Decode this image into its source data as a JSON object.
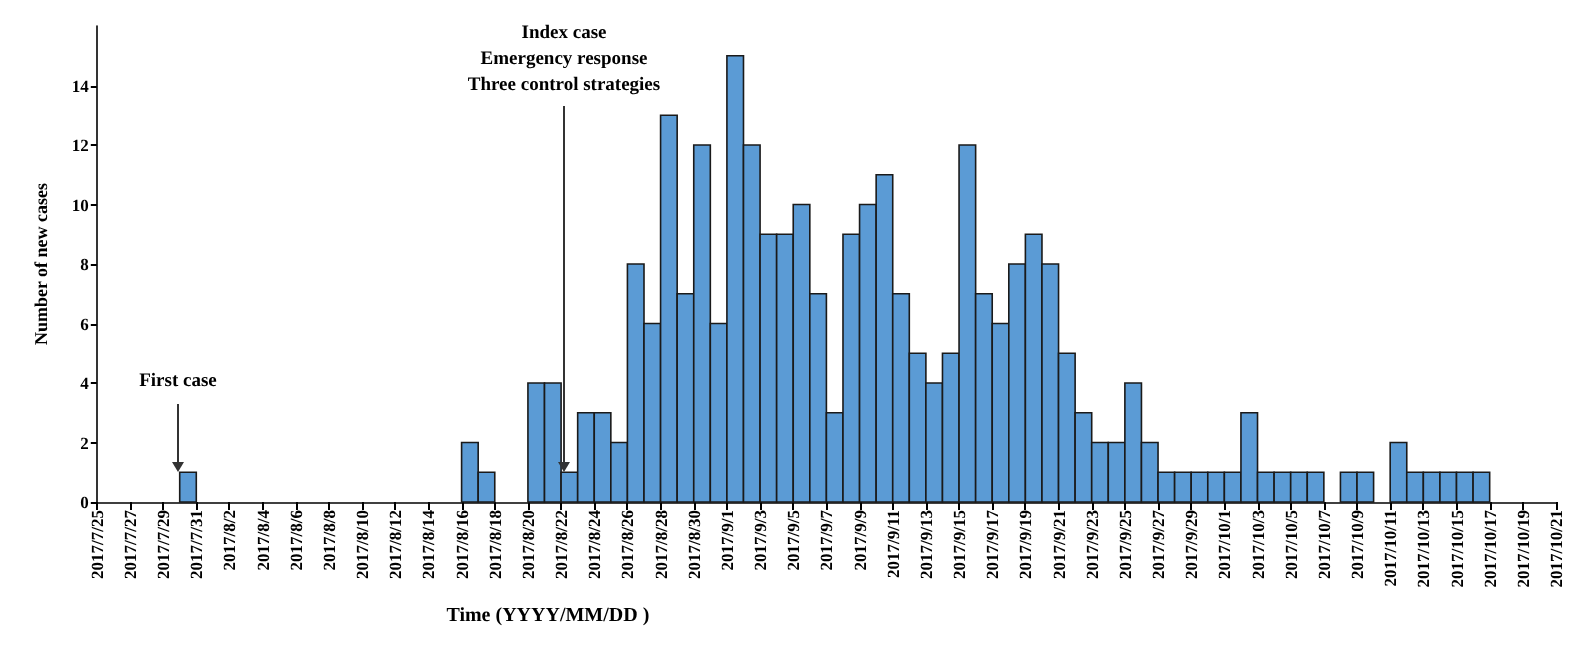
{
  "chart_data": {
    "type": "bar",
    "xlabel": "Time (YYYY/MM/DD )",
    "ylabel": "Number of new cases",
    "color": "#5b9bd5",
    "x": [
      "2017-07-25T12:00",
      "2017-07-26T12:00",
      "2017-07-27T12:00",
      "2017-07-28T12:00",
      "2017-07-29T12:00",
      "2017-07-30T12:00",
      "2017-07-31T12:00",
      "2017-08-01T12:00",
      "2017-08-02T12:00",
      "2017-08-03T12:00",
      "2017-08-04T12:00",
      "2017-08-05T12:00",
      "2017-08-06T12:00",
      "2017-08-07T12:00",
      "2017-08-08T12:00",
      "2017-08-09T12:00",
      "2017-08-10T12:00",
      "2017-08-11T12:00",
      "2017-08-12T12:00",
      "2017-08-13T12:00",
      "2017-08-14T12:00",
      "2017-08-15T12:00",
      "2017-08-16T12:00",
      "2017-08-17T12:00",
      "2017-08-18T12:00",
      "2017-08-19T12:00",
      "2017-08-20T12:00",
      "2017-08-21T12:00",
      "2017-08-22T12:00",
      "2017-08-23T12:00",
      "2017-08-24T12:00",
      "2017-08-25T12:00",
      "2017-08-26T12:00",
      "2017-08-27T12:00",
      "2017-08-28T12:00",
      "2017-08-29T12:00",
      "2017-08-30T12:00",
      "2017-08-31T12:00",
      "2017-09-01T12:00",
      "2017-09-02T12:00",
      "2017-09-03T12:00",
      "2017-09-04T12:00",
      "2017-09-05T12:00",
      "2017-09-06T12:00",
      "2017-09-07T12:00",
      "2017-09-08T12:00",
      "2017-09-09T12:00",
      "2017-09-10T12:00",
      "2017-09-11T12:00",
      "2017-09-12T12:00",
      "2017-09-13T12:00",
      "2017-09-14T12:00",
      "2017-09-15T12:00",
      "2017-09-16T12:00",
      "2017-09-17T12:00",
      "2017-09-18T12:00",
      "2017-09-19T12:00",
      "2017-09-20T12:00",
      "2017-09-21T12:00",
      "2017-09-22T12:00",
      "2017-09-23T12:00",
      "2017-09-24T12:00",
      "2017-09-25T12:00",
      "2017-09-26T12:00",
      "2017-09-27T12:00",
      "2017-09-28T12:00",
      "2017-09-29T12:00",
      "2017-09-30T12:00",
      "2017-10-01T12:00",
      "2017-10-02T12:00",
      "2017-10-03T12:00",
      "2017-10-04T12:00",
      "2017-10-05T12:00",
      "2017-10-06T12:00",
      "2017-10-07T12:00",
      "2017-10-08T12:00",
      "2017-10-09T12:00",
      "2017-10-10T12:00",
      "2017-10-11T12:00",
      "2017-10-12T12:00",
      "2017-10-13T12:00",
      "2017-10-14T12:00",
      "2017-10-15T12:00",
      "2017-10-16T12:00",
      "2017-10-17T12:00",
      "2017-10-18T12:00",
      "2017-10-19T12:00",
      "2017-10-20T12:00"
    ],
    "values": [
      0,
      0,
      0,
      0,
      0,
      1,
      0,
      0,
      0,
      0,
      0,
      0,
      0,
      0,
      0,
      0,
      0,
      0,
      0,
      0,
      0,
      0,
      2,
      1,
      0,
      0,
      4,
      4,
      1,
      3,
      3,
      2,
      8,
      6,
      13,
      7,
      12,
      6,
      15,
      12,
      9,
      9,
      10,
      7,
      3,
      9,
      10,
      11,
      7,
      5,
      4,
      5,
      12,
      7,
      6,
      8,
      9,
      8,
      5,
      3,
      2,
      2,
      4,
      2,
      1,
      1,
      1,
      1,
      1,
      3,
      1,
      1,
      1,
      1,
      0,
      1,
      1,
      0,
      2,
      1,
      1,
      1,
      1,
      1,
      0,
      0,
      0,
      0
    ],
    "xlim": [
      "2017-07-25",
      "2017-10-21"
    ],
    "xticks": [
      {
        "value": "2017-07-25",
        "label": "2017/7/25"
      },
      {
        "value": "2017-07-27",
        "label": "2017/7/27"
      },
      {
        "value": "2017-07-29",
        "label": "2017/7/29"
      },
      {
        "value": "2017-07-31",
        "label": "2017/7/31"
      },
      {
        "value": "2017-08-02",
        "label": "2017/8/2"
      },
      {
        "value": "2017-08-04",
        "label": "2017/8/4"
      },
      {
        "value": "2017-08-06",
        "label": "2017/8/6"
      },
      {
        "value": "2017-08-08",
        "label": "2017/8/8"
      },
      {
        "value": "2017-08-10",
        "label": "2017/8/10"
      },
      {
        "value": "2017-08-12",
        "label": "2017/8/12"
      },
      {
        "value": "2017-08-14",
        "label": "2017/8/14"
      },
      {
        "value": "2017-08-16",
        "label": "2017/8/16"
      },
      {
        "value": "2017-08-18",
        "label": "2017/8/18"
      },
      {
        "value": "2017-08-20",
        "label": "2017/8/20"
      },
      {
        "value": "2017-08-22",
        "label": "2017/8/22"
      },
      {
        "value": "2017-08-24",
        "label": "2017/8/24"
      },
      {
        "value": "2017-08-26",
        "label": "2017/8/26"
      },
      {
        "value": "2017-08-28",
        "label": "2017/8/28"
      },
      {
        "value": "2017-08-30",
        "label": "2017/8/30"
      },
      {
        "value": "2017-09-01",
        "label": "2017/9/1"
      },
      {
        "value": "2017-09-03",
        "label": "2017/9/3"
      },
      {
        "value": "2017-09-05",
        "label": "2017/9/5"
      },
      {
        "value": "2017-09-07",
        "label": "2017/9/7"
      },
      {
        "value": "2017-09-09",
        "label": "2017/9/9"
      },
      {
        "value": "2017-09-11",
        "label": "2017/9/11"
      },
      {
        "value": "2017-09-13",
        "label": "2017/9/13"
      },
      {
        "value": "2017-09-15",
        "label": "2017/9/15"
      },
      {
        "value": "2017-09-17",
        "label": "2017/9/17"
      },
      {
        "value": "2017-09-19",
        "label": "2017/9/19"
      },
      {
        "value": "2017-09-21",
        "label": "2017/9/21"
      },
      {
        "value": "2017-09-23",
        "label": "2017/9/23"
      },
      {
        "value": "2017-09-25",
        "label": "2017/9/25"
      },
      {
        "value": "2017-09-27",
        "label": "2017/9/27"
      },
      {
        "value": "2017-09-29",
        "label": "2017/9/29"
      },
      {
        "value": "2017-10-01",
        "label": "2017/10/1"
      },
      {
        "value": "2017-10-03",
        "label": "2017/10/3"
      },
      {
        "value": "2017-10-05",
        "label": "2017/10/5"
      },
      {
        "value": "2017-10-07",
        "label": "2017/10/7"
      },
      {
        "value": "2017-10-09",
        "label": "2017/10/9"
      },
      {
        "value": "2017-10-11",
        "label": "2017/10/11"
      },
      {
        "value": "2017-10-13",
        "label": "2017/10/13"
      },
      {
        "value": "2017-10-15",
        "label": "2017/10/15"
      },
      {
        "value": "2017-10-17",
        "label": "2017/10/17"
      },
      {
        "value": "2017-10-19",
        "label": "2017/10/19"
      },
      {
        "value": "2017-10-21",
        "label": "2017/10/21"
      }
    ],
    "ylim": [
      0,
      16
    ],
    "yticks": [
      0,
      2,
      4,
      6,
      8,
      10,
      12,
      14
    ],
    "annotations": [
      "First case",
      "Index case\nEmergency response\nThree control strategies"
    ]
  }
}
